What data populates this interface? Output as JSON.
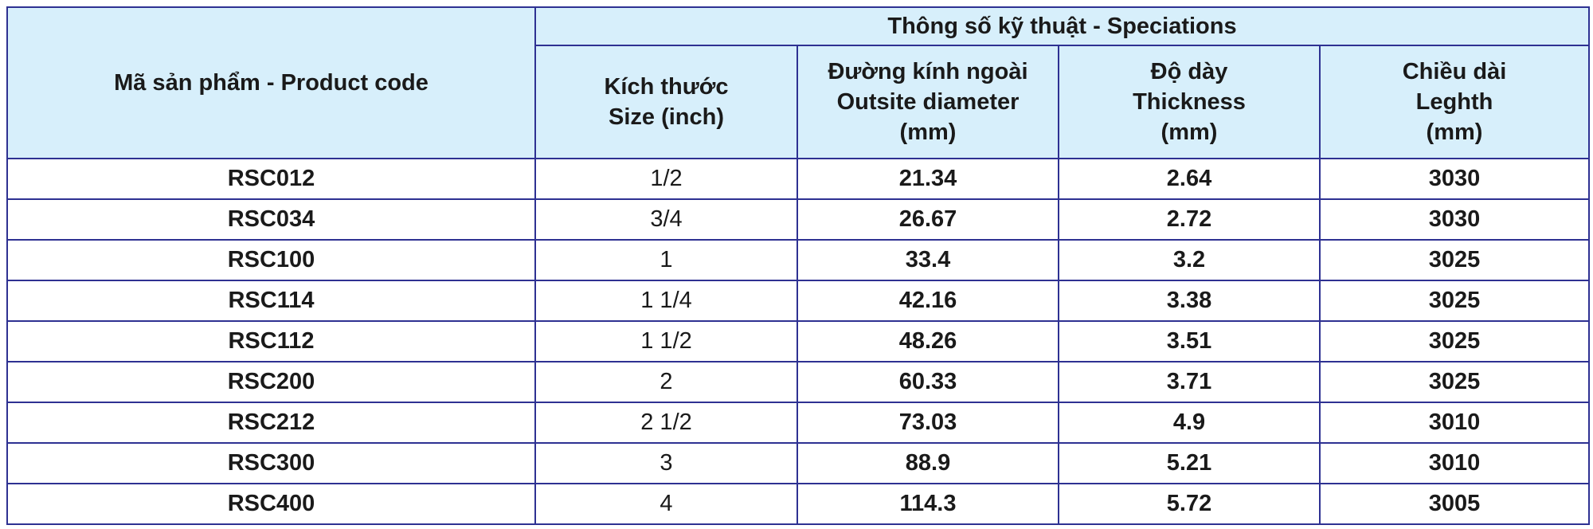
{
  "table": {
    "product_code_header": "Mã sản phẩm - Product code",
    "group_header": "Thông số kỹ thuật - Speciations",
    "columns": [
      [
        "Kích thước",
        "Size (inch)"
      ],
      [
        "Đường kính ngoài",
        "Outsite diameter",
        "(mm)"
      ],
      [
        "Độ dày",
        "Thickness",
        "(mm)"
      ],
      [
        "Chiều dài",
        "Leghth",
        "(mm)"
      ]
    ],
    "rows": [
      [
        "RSC012",
        "1/2",
        "21.34",
        "2.64",
        "3030"
      ],
      [
        "RSC034",
        "3/4",
        "26.67",
        "2.72",
        "3030"
      ],
      [
        "RSC100",
        "1",
        "33.4",
        "3.2",
        "3025"
      ],
      [
        "RSC114",
        "1 1/4",
        "42.16",
        "3.38",
        "3025"
      ],
      [
        "RSC112",
        "1 1/2",
        "48.26",
        "3.51",
        "3025"
      ],
      [
        "RSC200",
        "2",
        "60.33",
        "3.71",
        "3025"
      ],
      [
        "RSC212",
        "2 1/2",
        "73.03",
        "4.9",
        "3010"
      ],
      [
        "RSC300",
        "3",
        "88.9",
        "5.21",
        "3010"
      ],
      [
        "RSC400",
        "4",
        "114.3",
        "5.72",
        "3005"
      ]
    ]
  }
}
